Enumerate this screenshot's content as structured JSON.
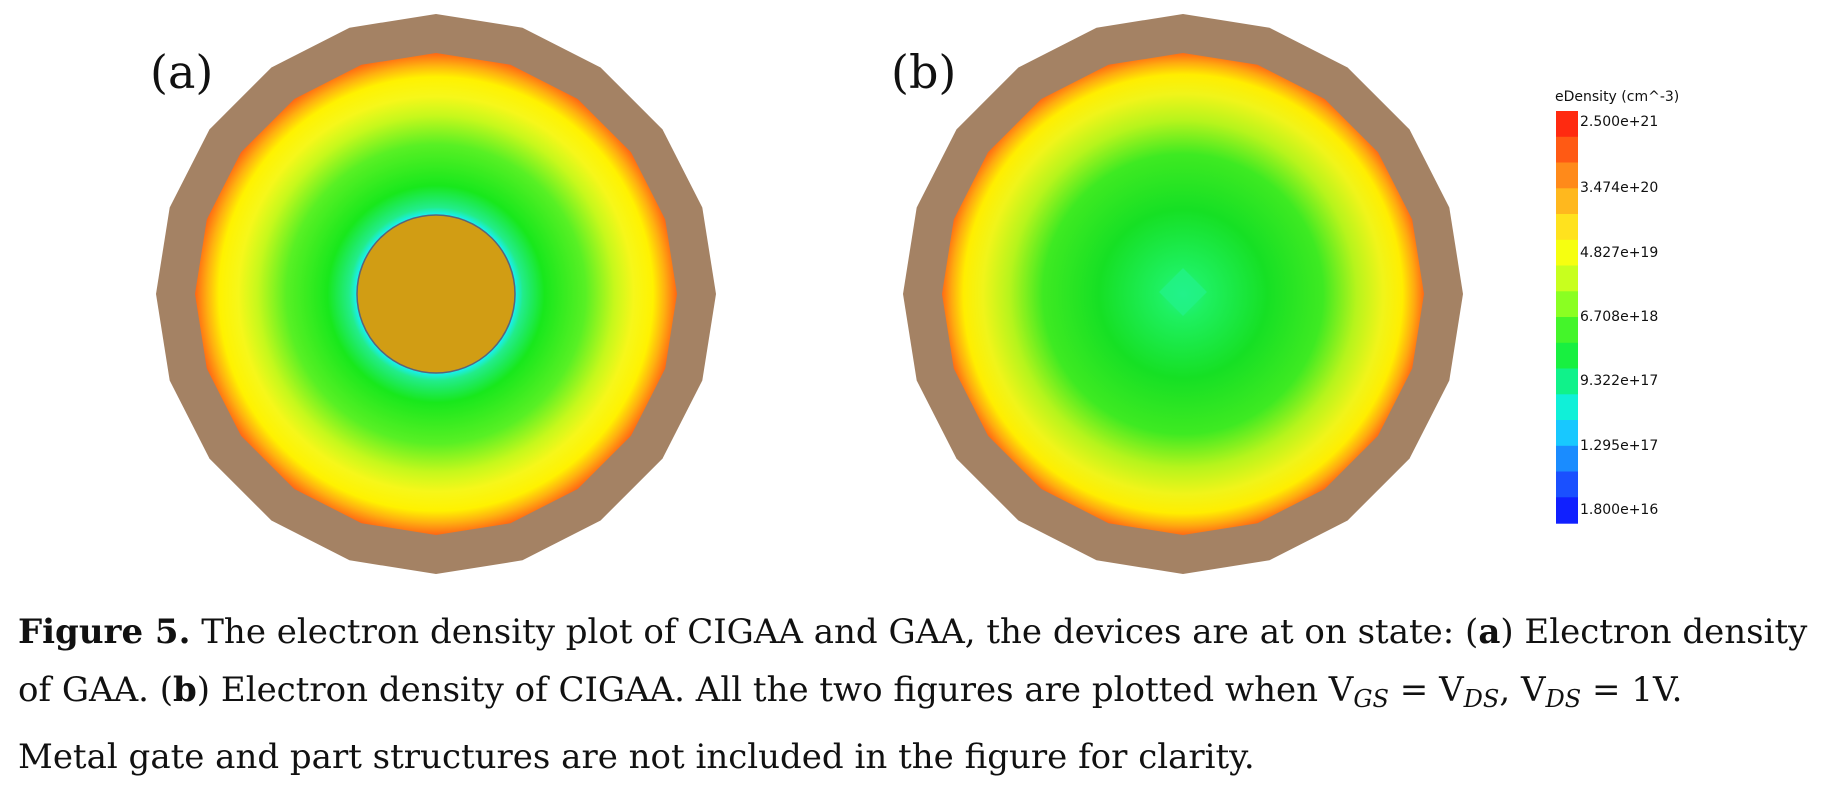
{
  "figure": {
    "panels": [
      {
        "label": "(a)",
        "device": "GAA",
        "has_core": true
      },
      {
        "label": "(b)",
        "device": "CIGAA",
        "has_core": false
      }
    ],
    "colorbar": {
      "title": "eDensity (cm^-3)",
      "ticks": [
        "2.500e+21",
        "3.474e+20",
        "4.827e+19",
        "6.708e+18",
        "9.322e+17",
        "1.295e+17",
        "1.800e+16"
      ],
      "colors_top_to_bottom": [
        "#ff2a10",
        "#ff5a14",
        "#ff8a1a",
        "#ffb81e",
        "#ffe21e",
        "#f6ff10",
        "#c8ff1e",
        "#8aff22",
        "#44f52a",
        "#18f040",
        "#10f28a",
        "#10f0d8",
        "#18c8ff",
        "#1a8cff",
        "#1a50ff",
        "#1020ff"
      ]
    },
    "colors": {
      "oxide_ring": "#a48264",
      "core_metal": "#d19d14",
      "core_outline": "#5a6478"
    }
  },
  "caption": {
    "label": "Figure 5.",
    "line1_text": " The electron density plot of CIGAA and GAA, the devices are at on state: (",
    "line1_a": "a",
    "line1_tail": ") Electron density",
    "line2_start": "of GAA. (",
    "line2_b": "b",
    "line2_text": ") Electron density of CIGAA. All the two figures are plotted when V",
    "sub_gs": "GS",
    "eq1": " = V",
    "sub_ds1": "DS",
    "comma": ", V",
    "sub_ds2": "DS",
    "eq2": " = 1V.",
    "line3": "Metal gate and part structures are not included in the figure for clarity."
  }
}
